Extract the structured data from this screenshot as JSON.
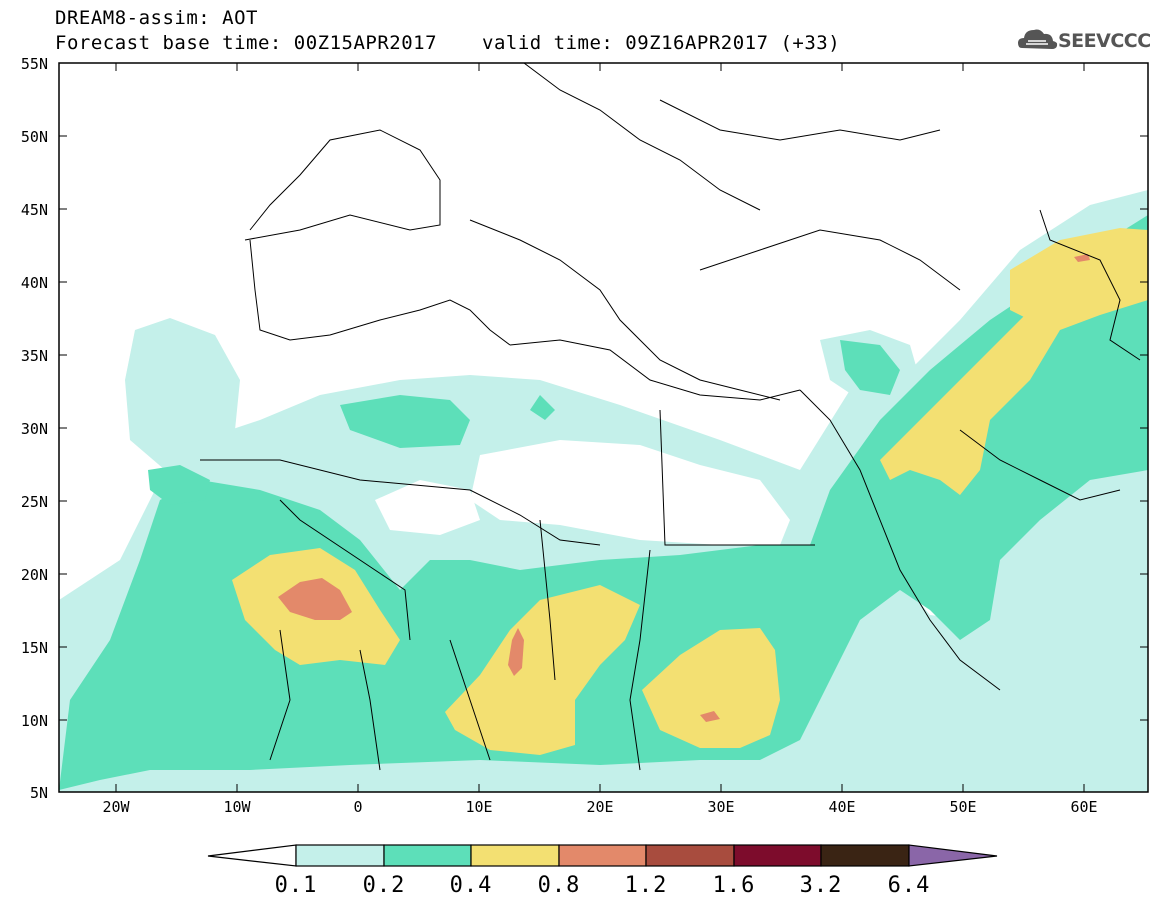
{
  "header": {
    "title_line1": "DREAM8-assim: AOT",
    "base_time": "Forecast base time: 00Z15APR2017",
    "valid_time": "valid time: 09Z16APR2017 (+33)",
    "logo_text": "SEEVCCC",
    "logo_icon": "cloud-icon"
  },
  "map": {
    "variable": "AOT",
    "lon_range": [
      -25,
      65
    ],
    "lat_range": [
      5,
      55
    ],
    "lat_labels": [
      "55N",
      "50N",
      "45N",
      "40N",
      "35N",
      "30N",
      "25N",
      "20N",
      "15N",
      "10N",
      "5N"
    ],
    "lon_labels": [
      "20W",
      "10W",
      "0",
      "10E",
      "20E",
      "30E",
      "40E",
      "50E",
      "60E"
    ]
  },
  "colorbar": {
    "levels": [
      "0.1",
      "0.2",
      "0.4",
      "0.8",
      "1.2",
      "1.6",
      "3.2",
      "6.4"
    ],
    "colors": [
      "#c4f0ea",
      "#5ddfb9",
      "#f3e072",
      "#e3896a",
      "#a84c3e",
      "#7d0c2c",
      "#3a2414",
      "#8a66a8"
    ],
    "under_color": "#ffffff"
  }
}
